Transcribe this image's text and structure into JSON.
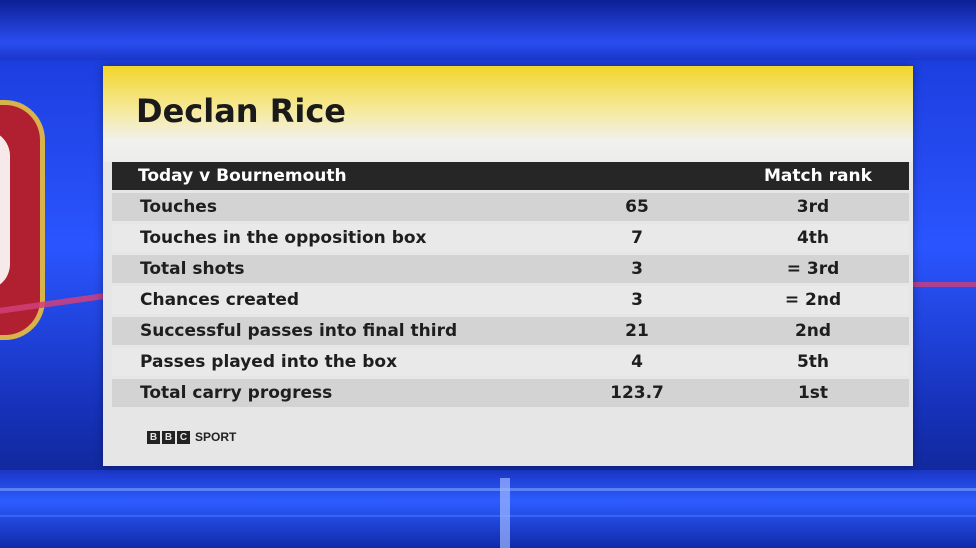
{
  "player_name": "Declan Rice",
  "table": {
    "header_left": "Today v Bournemouth",
    "header_right": "Match rank",
    "rows": [
      {
        "label": "Touches",
        "value": "65",
        "rank": "3rd"
      },
      {
        "label": "Touches in the opposition box",
        "value": "7",
        "rank": "4th"
      },
      {
        "label": "Total shots",
        "value": "3",
        "rank": "= 3rd"
      },
      {
        "label": "Chances created",
        "value": "3",
        "rank": "= 2nd"
      },
      {
        "label": "Successful passes into final third",
        "value": "21",
        "rank": "2nd"
      },
      {
        "label": "Passes played into the box",
        "value": "4",
        "rank": "5th"
      },
      {
        "label": "Total carry progress",
        "value": "123.7",
        "rank": "1st"
      }
    ]
  },
  "footer": {
    "logo_letters": [
      "B",
      "B",
      "C"
    ],
    "logo_text": "SPORT"
  },
  "colors": {
    "title_band": "#f1d52a",
    "header_row": "#262626",
    "studio_blue": "#2a55ff"
  }
}
